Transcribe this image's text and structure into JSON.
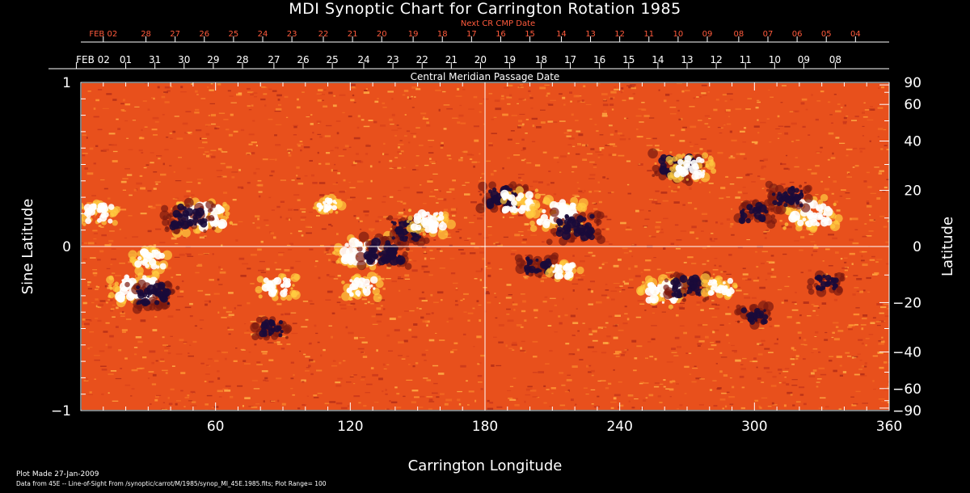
{
  "chart_data": {
    "type": "heatmap",
    "title": "MDI Synoptic Chart for Carrington Rotation 1985",
    "xlabel": "Carrington Longitude",
    "ylabel_left": "Sine Latitude",
    "ylabel_right": "Latitude",
    "xlim": [
      0,
      360
    ],
    "ylim": [
      -1,
      1
    ],
    "x_ticks": [
      60,
      120,
      180,
      240,
      300,
      360
    ],
    "y_ticks_left": [
      {
        "value": 1,
        "label": "1"
      },
      {
        "value": 0,
        "label": "0"
      },
      {
        "value": -1,
        "label": "−1"
      }
    ],
    "y_ticks_right_degrees": [
      90,
      60,
      40,
      20,
      0,
      -20,
      -40,
      -60,
      -90
    ],
    "y_ticks_right_labels": [
      "90",
      "60",
      "40",
      "20",
      "0",
      "−20",
      "−40",
      "−60",
      "−90"
    ],
    "cmp_axis_title": "Central Meridian Passage Date",
    "cmp_dates": [
      {
        "label": "FEB 02",
        "lon": -2
      },
      {
        "label": "01",
        "lon": 20
      },
      {
        "label": "31",
        "lon": 33
      },
      {
        "label": "30",
        "lon": 46
      },
      {
        "label": "29",
        "lon": 59
      },
      {
        "label": "28",
        "lon": 72
      },
      {
        "label": "27",
        "lon": 86
      },
      {
        "label": "26",
        "lon": 99
      },
      {
        "label": "25",
        "lon": 112
      },
      {
        "label": "24",
        "lon": 126
      },
      {
        "label": "23",
        "lon": 139
      },
      {
        "label": "22",
        "lon": 152
      },
      {
        "label": "21",
        "lon": 165
      },
      {
        "label": "20",
        "lon": 178
      },
      {
        "label": "19",
        "lon": 191
      },
      {
        "label": "18",
        "lon": 205
      },
      {
        "label": "17",
        "lon": 218
      },
      {
        "label": "16",
        "lon": 231
      },
      {
        "label": "15",
        "lon": 244
      },
      {
        "label": "14",
        "lon": 257
      },
      {
        "label": "13",
        "lon": 270
      },
      {
        "label": "12",
        "lon": 283
      },
      {
        "label": "11",
        "lon": 296
      },
      {
        "label": "10",
        "lon": 309
      },
      {
        "label": "09",
        "lon": 322
      },
      {
        "label": "08",
        "lon": 336
      }
    ],
    "next_cr_title": "Next CR CMP Date",
    "next_cr_dates": [
      {
        "label": "FEB 02",
        "lon": 10
      },
      {
        "label": "28",
        "lon": 29
      },
      {
        "label": "27",
        "lon": 42
      },
      {
        "label": "26",
        "lon": 55
      },
      {
        "label": "25",
        "lon": 68
      },
      {
        "label": "24",
        "lon": 81
      },
      {
        "label": "23",
        "lon": 94
      },
      {
        "label": "22",
        "lon": 108
      },
      {
        "label": "21",
        "lon": 121
      },
      {
        "label": "20",
        "lon": 134
      },
      {
        "label": "19",
        "lon": 148
      },
      {
        "label": "18",
        "lon": 161
      },
      {
        "label": "17",
        "lon": 174
      },
      {
        "label": "16",
        "lon": 187
      },
      {
        "label": "15",
        "lon": 200
      },
      {
        "label": "14",
        "lon": 214
      },
      {
        "label": "13",
        "lon": 227
      },
      {
        "label": "12",
        "lon": 240
      },
      {
        "label": "11",
        "lon": 253
      },
      {
        "label": "10",
        "lon": 266
      },
      {
        "label": "09",
        "lon": 279
      },
      {
        "label": "08",
        "lon": 293
      },
      {
        "label": "07",
        "lon": 306
      },
      {
        "label": "06",
        "lon": 319
      },
      {
        "label": "05",
        "lon": 332
      },
      {
        "label": "04",
        "lon": 345
      }
    ],
    "colormap": {
      "background": "#000000",
      "quiet": "#e8501c",
      "positive": "#ffffff",
      "negative": "#1a0a3a",
      "mid_positive": "#ffcc40",
      "mid_negative": "#7a1a10",
      "next_cr_color": "#ff5a3c"
    },
    "active_regions": [
      {
        "lon": 55,
        "slat": 0.18,
        "polarity": "positive",
        "strength": 1.0
      },
      {
        "lon": 48,
        "slat": 0.18,
        "polarity": "negative",
        "strength": 0.9
      },
      {
        "lon": 25,
        "slat": -0.25,
        "polarity": "positive",
        "strength": 1.0
      },
      {
        "lon": 32,
        "slat": -0.3,
        "polarity": "negative",
        "strength": 0.9
      },
      {
        "lon": 31,
        "slat": -0.08,
        "polarity": "positive",
        "strength": 0.7
      },
      {
        "lon": 125,
        "slat": -0.25,
        "polarity": "positive",
        "strength": 0.7
      },
      {
        "lon": 88,
        "slat": -0.25,
        "polarity": "positive",
        "strength": 0.7
      },
      {
        "lon": 85,
        "slat": -0.5,
        "polarity": "negative",
        "strength": 0.6
      },
      {
        "lon": 125,
        "slat": -0.03,
        "polarity": "positive",
        "strength": 1.0
      },
      {
        "lon": 135,
        "slat": -0.03,
        "polarity": "negative",
        "strength": 0.95
      },
      {
        "lon": 145,
        "slat": 0.1,
        "polarity": "negative",
        "strength": 0.8
      },
      {
        "lon": 155,
        "slat": 0.15,
        "polarity": "positive",
        "strength": 0.8
      },
      {
        "lon": 188,
        "slat": 0.3,
        "polarity": "negative",
        "strength": 0.8
      },
      {
        "lon": 195,
        "slat": 0.27,
        "polarity": "positive",
        "strength": 0.8
      },
      {
        "lon": 212,
        "slat": 0.2,
        "polarity": "positive",
        "strength": 1.0
      },
      {
        "lon": 220,
        "slat": 0.12,
        "polarity": "negative",
        "strength": 0.95
      },
      {
        "lon": 203,
        "slat": -0.12,
        "polarity": "negative",
        "strength": 0.7
      },
      {
        "lon": 215,
        "slat": -0.15,
        "polarity": "positive",
        "strength": 0.6
      },
      {
        "lon": 260,
        "slat": -0.28,
        "polarity": "positive",
        "strength": 0.9
      },
      {
        "lon": 270,
        "slat": -0.25,
        "polarity": "negative",
        "strength": 0.8
      },
      {
        "lon": 285,
        "slat": -0.25,
        "polarity": "positive",
        "strength": 0.6
      },
      {
        "lon": 300,
        "slat": -0.42,
        "polarity": "negative",
        "strength": 0.6
      },
      {
        "lon": 266,
        "slat": 0.48,
        "polarity": "negative",
        "strength": 0.9
      },
      {
        "lon": 272,
        "slat": 0.48,
        "polarity": "positive",
        "strength": 0.8
      },
      {
        "lon": 325,
        "slat": 0.2,
        "polarity": "positive",
        "strength": 1.0
      },
      {
        "lon": 315,
        "slat": 0.3,
        "polarity": "negative",
        "strength": 0.8
      },
      {
        "lon": 300,
        "slat": 0.2,
        "polarity": "negative",
        "strength": 0.7
      },
      {
        "lon": 332,
        "slat": -0.22,
        "polarity": "negative",
        "strength": 0.6
      },
      {
        "lon": 8,
        "slat": 0.2,
        "polarity": "positive",
        "strength": 0.7
      },
      {
        "lon": 110,
        "slat": 0.25,
        "polarity": "positive",
        "strength": 0.5
      }
    ]
  },
  "footer": {
    "plot_made": "Plot Made 27-Jan-2009",
    "data_source": "Data from 45E -- Line-of-Sight From /synoptic/carrot/M/1985/synop_Ml_45E.1985.fits; Plot Range= 100"
  }
}
